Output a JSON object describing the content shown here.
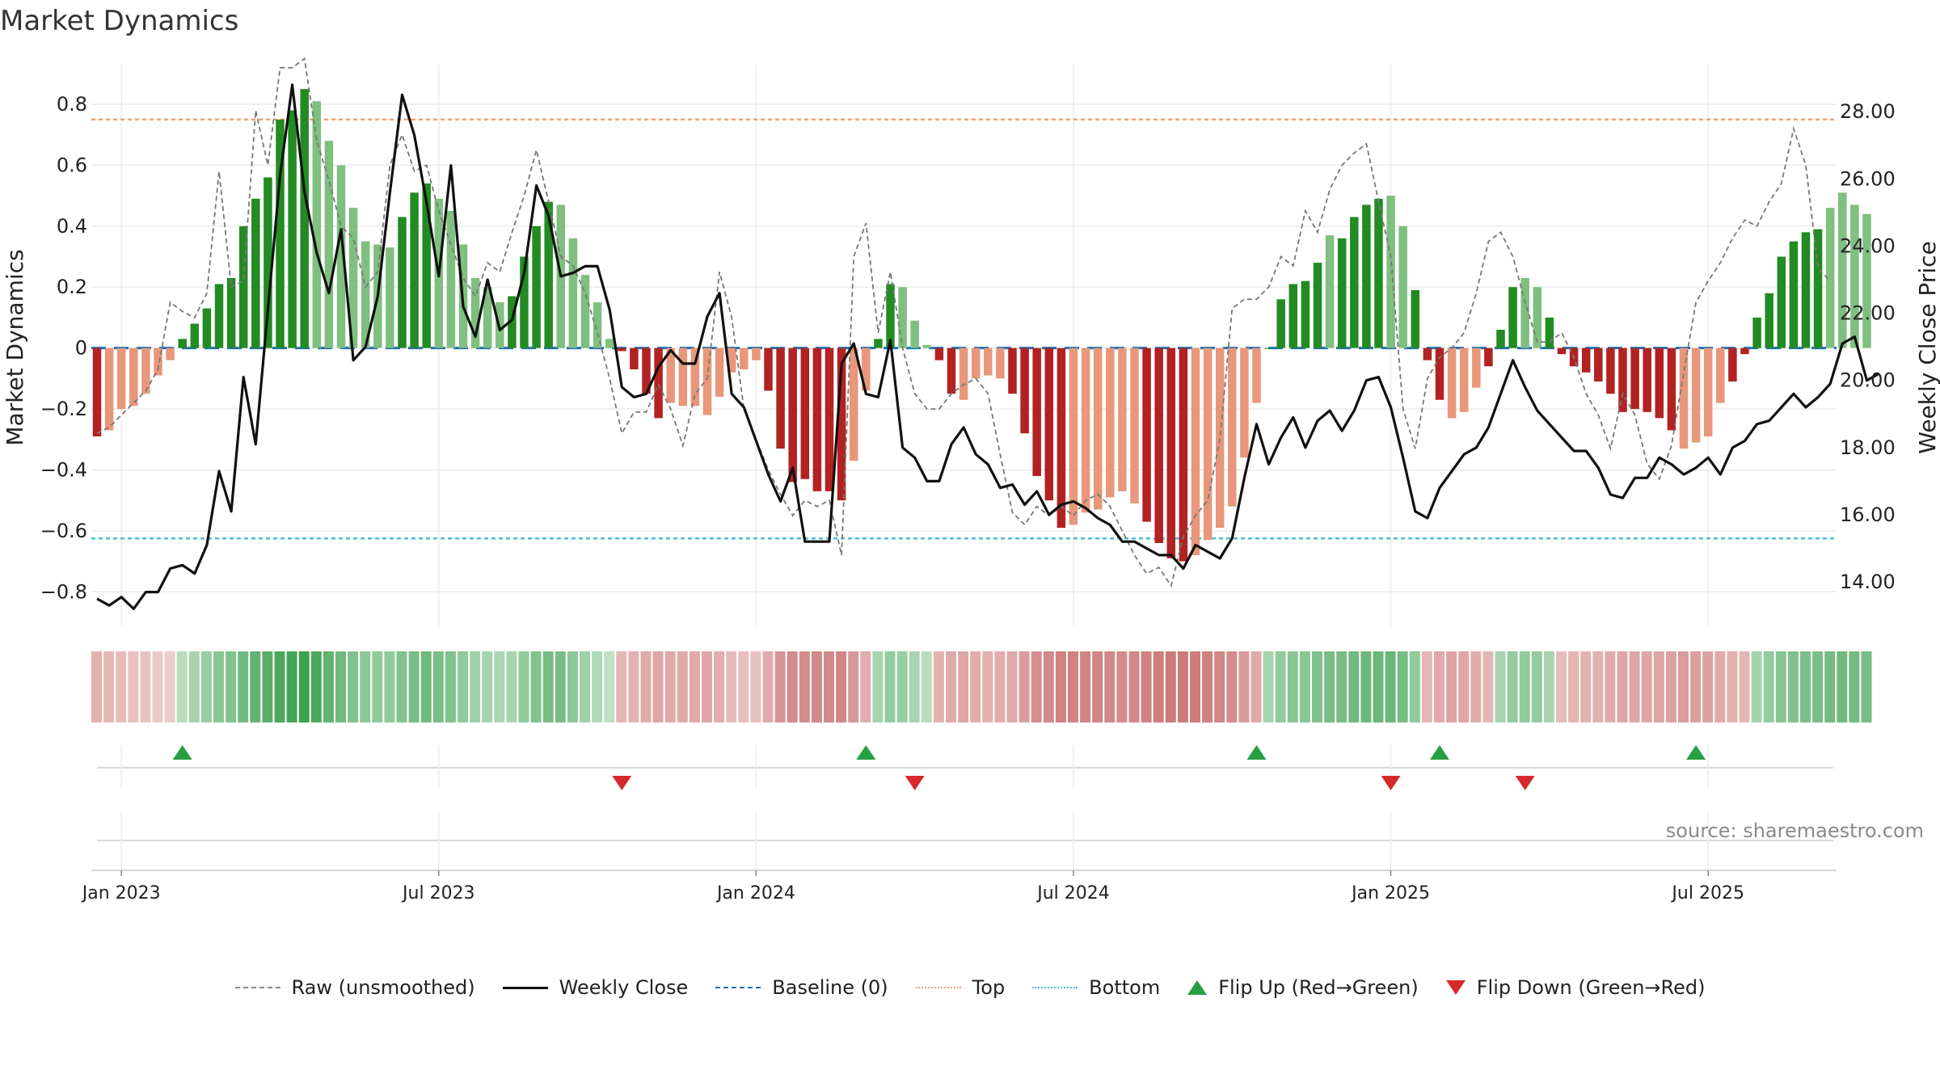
{
  "title": "Market Dynamics",
  "source": "source: sharemaestro.com",
  "colors": {
    "green_dark": "#228b22",
    "green_light": "#7fbf7f",
    "red_dark": "#b22222",
    "red_light": "#e8977a",
    "top_line": "#f0a070",
    "bottom_line": "#4bbfd6",
    "baseline": "#1f6fb4",
    "raw": "#777777",
    "close": "#111111",
    "flip_up": "#27a043",
    "flip_down": "#d62a2a"
  },
  "chart_data": {
    "type": "bar",
    "title": "Market Dynamics",
    "ylabel": "Market Dynamics",
    "y2label": "Weekly Close Price",
    "ylim": [
      -0.9,
      0.93
    ],
    "y2lim": [
      12.8,
      29.4
    ],
    "yticks": [
      "−0.8",
      "−0.6",
      "−0.4",
      "−0.2",
      "0",
      "0.2",
      "0.4",
      "0.6",
      "0.8"
    ],
    "yticks_values": [
      -0.8,
      -0.6,
      -0.4,
      -0.2,
      0,
      0.2,
      0.4,
      0.6,
      0.8
    ],
    "y2ticks": [
      "14.00",
      "16.00",
      "18.00",
      "20.00",
      "22.00",
      "24.00",
      "26.00",
      "28.00"
    ],
    "y2ticks_values": [
      14,
      16,
      18,
      20,
      22,
      24,
      26,
      28
    ],
    "xticks": [
      "Jan 2023",
      "Jul 2023",
      "Jan 2024",
      "Jul 2024",
      "Jan 2025",
      "Jul 2025"
    ],
    "xticks_week_index": [
      2,
      28,
      54,
      80,
      106,
      132
    ],
    "start_week": "2022-12-19",
    "top": 0.75,
    "bottom": -0.625,
    "baseline": 0,
    "grid": true,
    "legend_position": "bottom",
    "series": [
      {
        "name": "Raw (unsmoothed)",
        "type": "line",
        "style": "dashed"
      },
      {
        "name": "Weekly Close",
        "type": "line"
      },
      {
        "name": "Baseline (0)",
        "type": "line",
        "style": "dashed"
      },
      {
        "name": "Top",
        "type": "line",
        "style": "dotted"
      },
      {
        "name": "Bottom",
        "type": "line",
        "style": "dotted"
      },
      {
        "name": "Flip Up (Red→Green)",
        "type": "marker"
      },
      {
        "name": "Flip Down (Green→Red)",
        "type": "marker"
      }
    ],
    "dynamics": [
      -0.29,
      -0.27,
      -0.2,
      -0.19,
      -0.15,
      -0.09,
      -0.04,
      0.03,
      0.08,
      0.13,
      0.21,
      0.23,
      0.4,
      0.49,
      0.56,
      0.75,
      0.78,
      0.85,
      0.81,
      0.68,
      0.6,
      0.46,
      0.35,
      0.34,
      0.33,
      0.43,
      0.51,
      0.54,
      0.49,
      0.45,
      0.34,
      0.23,
      0.2,
      0.15,
      0.17,
      0.3,
      0.4,
      0.48,
      0.47,
      0.36,
      0.24,
      0.15,
      0.03,
      -0.01,
      -0.07,
      -0.15,
      -0.23,
      -0.18,
      -0.19,
      -0.19,
      -0.22,
      -0.16,
      -0.08,
      -0.07,
      -0.04,
      -0.14,
      -0.33,
      -0.44,
      -0.43,
      -0.47,
      -0.47,
      -0.5,
      -0.37,
      -0.14,
      0.03,
      0.21,
      0.2,
      0.09,
      0.01,
      -0.04,
      -0.15,
      -0.17,
      -0.1,
      -0.09,
      -0.1,
      -0.15,
      -0.28,
      -0.42,
      -0.5,
      -0.59,
      -0.58,
      -0.54,
      -0.53,
      -0.49,
      -0.47,
      -0.51,
      -0.57,
      -0.64,
      -0.69,
      -0.7,
      -0.68,
      -0.63,
      -0.59,
      -0.52,
      -0.36,
      -0.18,
      0,
      0.16,
      0.21,
      0.22,
      0.28,
      0.37,
      0.36,
      0.43,
      0.47,
      0.49,
      0.5,
      0.4,
      0.19,
      -0.04,
      -0.17,
      -0.23,
      -0.21,
      -0.13,
      -0.06,
      0.06,
      0.2,
      0.23,
      0.2,
      0.1,
      -0.02,
      -0.06,
      -0.08,
      -0.11,
      -0.15,
      -0.21,
      -0.2,
      -0.21,
      -0.23,
      -0.27,
      -0.33,
      -0.31,
      -0.29,
      -0.18,
      -0.11,
      -0.02,
      0.1,
      0.18,
      0.3,
      0.35,
      0.38,
      0.39,
      0.46,
      0.51,
      0.47,
      0.44
    ],
    "raw": [
      -0.28,
      -0.26,
      -0.22,
      -0.18,
      -0.14,
      -0.07,
      0.15,
      0.12,
      0.1,
      0.18,
      0.58,
      0.2,
      0.22,
      0.78,
      0.6,
      0.92,
      0.92,
      0.95,
      0.68,
      0.55,
      0.4,
      0.36,
      0.2,
      0.25,
      0.6,
      0.7,
      0.58,
      0.6,
      0.45,
      0.34,
      0.23,
      0.17,
      0.28,
      0.25,
      0.38,
      0.5,
      0.65,
      0.48,
      0.3,
      0.27,
      0.18,
      0.05,
      -0.1,
      -0.28,
      -0.21,
      -0.21,
      -0.12,
      -0.2,
      -0.32,
      -0.15,
      -0.1,
      0.25,
      0.1,
      -0.2,
      -0.3,
      -0.4,
      -0.48,
      -0.55,
      -0.5,
      -0.52,
      -0.5,
      -0.68,
      0.3,
      0.41,
      0.05,
      0.25,
      0.0,
      -0.15,
      -0.2,
      -0.2,
      -0.15,
      -0.12,
      -0.1,
      -0.15,
      -0.35,
      -0.54,
      -0.58,
      -0.52,
      -0.55,
      -0.52,
      -0.55,
      -0.5,
      -0.48,
      -0.52,
      -0.6,
      -0.68,
      -0.74,
      -0.72,
      -0.78,
      -0.62,
      -0.55,
      -0.5,
      -0.3,
      0.13,
      0.16,
      0.16,
      0.2,
      0.3,
      0.27,
      0.45,
      0.38,
      0.52,
      0.6,
      0.64,
      0.67,
      0.48,
      0.3,
      -0.2,
      -0.33,
      -0.1,
      -0.03,
      0.0,
      0.05,
      0.18,
      0.35,
      0.38,
      0.3,
      0.15,
      0.02,
      0.02,
      0.05,
      -0.03,
      -0.15,
      -0.22,
      -0.33,
      -0.15,
      -0.22,
      -0.38,
      -0.43,
      -0.32,
      -0.08,
      0.15,
      0.22,
      0.28,
      0.36,
      0.42,
      0.4,
      0.48,
      0.54,
      0.72,
      0.6,
      0.26,
      0.22
    ],
    "close": [
      13.5,
      13.3,
      13.55,
      13.2,
      13.7,
      13.7,
      14.4,
      14.5,
      14.25,
      15.1,
      17.3,
      16.1,
      20.1,
      18.1,
      22.1,
      26.1,
      28.8,
      25.6,
      23.8,
      22.6,
      24.5,
      20.6,
      21.0,
      22.5,
      25.6,
      28.5,
      27.3,
      25.3,
      23.1,
      26.4,
      22.2,
      21.3,
      23.0,
      21.5,
      21.8,
      23.2,
      25.8,
      24.9,
      23.1,
      23.2,
      23.4,
      23.4,
      22.1,
      19.8,
      19.5,
      19.6,
      20.4,
      20.9,
      20.5,
      20.5,
      21.9,
      22.6,
      19.6,
      19.2,
      18.2,
      17.2,
      16.4,
      17.4,
      15.2,
      15.2,
      15.2,
      20.5,
      21.1,
      19.6,
      19.5,
      21.2,
      18.0,
      17.7,
      17.0,
      17.0,
      18.1,
      18.6,
      17.8,
      17.5,
      16.8,
      16.9,
      16.3,
      16.7,
      16.0,
      16.3,
      16.4,
      16.2,
      15.9,
      15.7,
      15.2,
      15.2,
      15.0,
      14.8,
      14.8,
      14.4,
      15.1,
      14.9,
      14.7,
      15.3,
      17.1,
      18.7,
      17.5,
      18.3,
      18.9,
      18.0,
      18.8,
      19.1,
      18.5,
      19.1,
      20.0,
      20.1,
      19.2,
      17.7,
      16.1,
      15.9,
      16.8,
      17.3,
      17.8,
      18.0,
      18.6,
      19.6,
      20.6,
      19.8,
      19.1,
      18.7,
      18.3,
      17.9,
      17.9,
      17.4,
      16.6,
      16.5,
      17.1,
      17.1,
      17.7,
      17.5,
      17.2,
      17.4,
      17.7,
      17.2,
      18.0,
      18.2,
      18.7,
      18.8,
      19.2,
      19.6,
      19.2,
      19.5,
      19.9,
      21.1,
      21.3,
      20.0,
      20.2
    ],
    "strip_intensity": [
      0.35,
      0.3,
      0.25,
      0.2,
      0.18,
      0.12,
      0.08,
      0.2,
      0.3,
      0.4,
      0.5,
      0.55,
      0.65,
      0.75,
      0.8,
      0.9,
      0.95,
      1.0,
      0.9,
      0.75,
      0.65,
      0.55,
      0.48,
      0.45,
      0.45,
      0.55,
      0.62,
      0.66,
      0.6,
      0.55,
      0.45,
      0.35,
      0.32,
      0.28,
      0.3,
      0.45,
      0.55,
      0.62,
      0.6,
      0.48,
      0.35,
      0.25,
      0.15,
      0.3,
      0.35,
      0.4,
      0.45,
      0.42,
      0.42,
      0.42,
      0.45,
      0.38,
      0.25,
      0.22,
      0.2,
      0.4,
      0.62,
      0.72,
      0.72,
      0.74,
      0.74,
      0.76,
      0.6,
      0.38,
      0.3,
      0.42,
      0.4,
      0.3,
      0.2,
      0.35,
      0.42,
      0.44,
      0.38,
      0.36,
      0.38,
      0.42,
      0.55,
      0.68,
      0.74,
      0.8,
      0.8,
      0.78,
      0.77,
      0.74,
      0.72,
      0.75,
      0.8,
      0.85,
      0.88,
      0.88,
      0.86,
      0.82,
      0.78,
      0.72,
      0.58,
      0.42,
      0.3,
      0.45,
      0.5,
      0.5,
      0.56,
      0.62,
      0.62,
      0.66,
      0.68,
      0.7,
      0.7,
      0.62,
      0.45,
      0.3,
      0.42,
      0.48,
      0.46,
      0.38,
      0.3,
      0.3,
      0.42,
      0.45,
      0.42,
      0.3,
      0.25,
      0.32,
      0.34,
      0.36,
      0.4,
      0.45,
      0.45,
      0.45,
      0.47,
      0.5,
      0.55,
      0.53,
      0.5,
      0.42,
      0.36,
      0.3,
      0.32,
      0.42,
      0.52,
      0.56,
      0.58,
      0.6,
      0.64,
      0.66,
      0.64,
      0.62
    ],
    "flip_up_weeks": [
      7,
      63,
      95,
      110,
      131
    ],
    "flip_down_weeks": [
      43,
      67,
      106,
      117
    ],
    "bar_shade": [
      "dark",
      "light",
      "light",
      "light",
      "light",
      "light",
      "light",
      "dark",
      "dark",
      "dark",
      "dark",
      "dark",
      "dark",
      "dark",
      "dark",
      "dark",
      "dark",
      "dark",
      "light",
      "light",
      "light",
      "light",
      "light",
      "light",
      "light",
      "dark",
      "dark",
      "dark",
      "light",
      "light",
      "light",
      "light",
      "light",
      "light",
      "dark",
      "dark",
      "dark",
      "dark",
      "light",
      "light",
      "light",
      "light",
      "light",
      "dark",
      "dark",
      "dark",
      "dark",
      "light",
      "light",
      "light",
      "light",
      "light",
      "light",
      "light",
      "light",
      "dark",
      "dark",
      "dark",
      "dark",
      "dark",
      "dark",
      "dark",
      "light",
      "light",
      "dark",
      "dark",
      "light",
      "light",
      "light",
      "dark",
      "dark",
      "light",
      "light",
      "light",
      "light",
      "dark",
      "dark",
      "dark",
      "dark",
      "dark",
      "light",
      "light",
      "light",
      "light",
      "light",
      "light",
      "dark",
      "dark",
      "dark",
      "dark",
      "light",
      "light",
      "light",
      "light",
      "light",
      "light",
      "dark",
      "dark",
      "dark",
      "dark",
      "dark",
      "light",
      "dark",
      "dark",
      "dark",
      "dark",
      "light",
      "light",
      "dark",
      "dark",
      "dark",
      "light",
      "light",
      "light",
      "dark",
      "dark",
      "dark",
      "light",
      "light",
      "dark",
      "dark",
      "dark",
      "dark",
      "dark",
      "dark",
      "dark",
      "dark",
      "dark",
      "dark",
      "dark",
      "light",
      "light",
      "light",
      "light",
      "dark",
      "dark",
      "dark",
      "dark",
      "dark",
      "dark",
      "dark",
      "dark",
      "light",
      "light"
    ]
  },
  "legend": [
    {
      "label": "Raw (unsmoothed)",
      "kind": "dashed",
      "color": "#888888"
    },
    {
      "label": "Weekly Close",
      "kind": "solid",
      "color": "#111111"
    },
    {
      "label": "Baseline (0)",
      "kind": "dashed",
      "color": "#1f6fb4"
    },
    {
      "label": "Top",
      "kind": "dotted",
      "color": "#f0a070"
    },
    {
      "label": "Bottom",
      "kind": "dotted",
      "color": "#4bbfd6"
    },
    {
      "label": "Flip Up (Red→Green)",
      "kind": "tri-up",
      "color": "#27a043"
    },
    {
      "label": "Flip Down (Green→Red)",
      "kind": "tri-down",
      "color": "#d62a2a"
    }
  ]
}
